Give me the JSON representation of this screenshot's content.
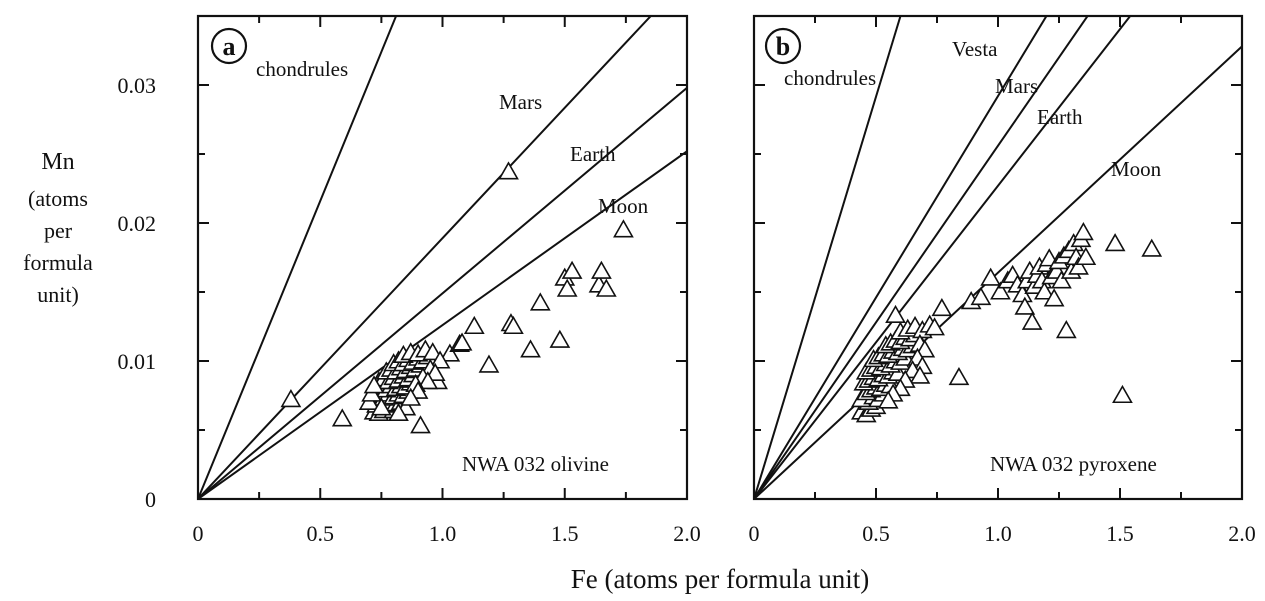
{
  "figure": {
    "xlabel": "Fe (atoms per formula unit)",
    "ylabel_lines": [
      "Mn",
      "(atoms",
      "per",
      "formula",
      "unit)"
    ]
  },
  "chart_data": [
    {
      "type": "scatter",
      "panel": "a",
      "sample_label": "NWA 032 olivine",
      "xlim": [
        0,
        2.0
      ],
      "ylim": [
        0,
        0.035
      ],
      "x_ticks": [
        0,
        0.5,
        1.0,
        1.5,
        2.0
      ],
      "x_tick_labels": [
        "0",
        "0.5",
        "1.0",
        "1.5",
        "2.0"
      ],
      "y_ticks": [
        0,
        0.01,
        0.02,
        0.03
      ],
      "y_tick_labels": [
        "0",
        "0.01",
        "0.02",
        "0.03"
      ],
      "reference_lines": [
        {
          "name": "chondrules",
          "slope": 0.0432
        },
        {
          "name": "Mars",
          "slope": 0.0189
        },
        {
          "name": "Earth",
          "slope": 0.0149
        },
        {
          "name": "Moon",
          "slope": 0.0126
        }
      ],
      "series": [
        {
          "points": [
            [
              0.38,
              0.0072
            ],
            [
              0.59,
              0.0058
            ],
            [
              0.91,
              0.0053
            ],
            [
              0.98,
              0.0085
            ],
            [
              1.03,
              0.0105
            ],
            [
              1.07,
              0.0112
            ],
            [
              1.08,
              0.0113
            ],
            [
              1.13,
              0.0125
            ],
            [
              1.19,
              0.0097
            ],
            [
              1.27,
              0.0237
            ],
            [
              1.28,
              0.0127
            ],
            [
              1.29,
              0.0125
            ],
            [
              1.36,
              0.0108
            ],
            [
              1.4,
              0.0142
            ],
            [
              1.48,
              0.0115
            ],
            [
              1.5,
              0.016
            ],
            [
              1.51,
              0.0152
            ],
            [
              1.53,
              0.0165
            ],
            [
              1.64,
              0.0155
            ],
            [
              1.65,
              0.0165
            ],
            [
              1.67,
              0.0152
            ],
            [
              1.74,
              0.0195
            ],
            [
              0.72,
              0.0063
            ],
            [
              0.74,
              0.0062
            ],
            [
              0.76,
              0.0064
            ],
            [
              0.78,
              0.0066
            ],
            [
              0.8,
              0.0064
            ],
            [
              0.73,
              0.0068
            ],
            [
              0.75,
              0.007
            ],
            [
              0.77,
              0.0068
            ],
            [
              0.79,
              0.007
            ],
            [
              0.81,
              0.0069
            ],
            [
              0.83,
              0.007
            ],
            [
              0.85,
              0.0066
            ],
            [
              0.72,
              0.0073
            ],
            [
              0.74,
              0.0075
            ],
            [
              0.76,
              0.0073
            ],
            [
              0.78,
              0.0076
            ],
            [
              0.8,
              0.0074
            ],
            [
              0.82,
              0.0076
            ],
            [
              0.84,
              0.0075
            ],
            [
              0.86,
              0.0078
            ],
            [
              0.73,
              0.0079
            ],
            [
              0.75,
              0.0081
            ],
            [
              0.77,
              0.0079
            ],
            [
              0.79,
              0.0082
            ],
            [
              0.81,
              0.008
            ],
            [
              0.83,
              0.0082
            ],
            [
              0.85,
              0.0081
            ],
            [
              0.87,
              0.0084
            ],
            [
              0.74,
              0.0085
            ],
            [
              0.76,
              0.0087
            ],
            [
              0.78,
              0.0085
            ],
            [
              0.8,
              0.0088
            ],
            [
              0.82,
              0.0086
            ],
            [
              0.84,
              0.0089
            ],
            [
              0.86,
              0.0087
            ],
            [
              0.88,
              0.009
            ],
            [
              0.77,
              0.0092
            ],
            [
              0.79,
              0.0094
            ],
            [
              0.81,
              0.0092
            ],
            [
              0.83,
              0.0095
            ],
            [
              0.85,
              0.0093
            ],
            [
              0.87,
              0.0096
            ],
            [
              0.89,
              0.0094
            ],
            [
              0.91,
              0.0097
            ],
            [
              0.8,
              0.0098
            ],
            [
              0.82,
              0.01
            ],
            [
              0.84,
              0.0098
            ],
            [
              0.86,
              0.0101
            ],
            [
              0.88,
              0.0099
            ],
            [
              0.9,
              0.0102
            ],
            [
              0.92,
              0.01
            ],
            [
              0.94,
              0.0103
            ],
            [
              0.84,
              0.0104
            ],
            [
              0.87,
              0.0106
            ],
            [
              0.9,
              0.0105
            ],
            [
              0.93,
              0.0108
            ],
            [
              0.96,
              0.0106
            ],
            [
              0.99,
              0.01
            ],
            [
              0.95,
              0.0094
            ],
            [
              0.97,
              0.0091
            ],
            [
              0.92,
              0.0088
            ],
            [
              0.94,
              0.0085
            ],
            [
              0.89,
              0.0083
            ],
            [
              0.9,
              0.0078
            ],
            [
              0.87,
              0.0073
            ],
            [
              0.7,
              0.007
            ],
            [
              0.71,
              0.0076
            ],
            [
              0.72,
              0.0082
            ],
            [
              0.75,
              0.0066
            ],
            [
              0.82,
              0.0062
            ]
          ]
        }
      ]
    },
    {
      "type": "scatter",
      "panel": "b",
      "sample_label": "NWA 032 pyroxene",
      "xlim": [
        0,
        2.0
      ],
      "ylim": [
        0,
        0.035
      ],
      "x_ticks": [
        0,
        0.5,
        1.0,
        1.5,
        2.0
      ],
      "x_tick_labels": [
        "0",
        "0.5",
        "1.0",
        "1.5",
        "2.0"
      ],
      "y_ticks": [
        0,
        0.01,
        0.02,
        0.03
      ],
      "reference_lines": [
        {
          "name": "chondrules",
          "slope": 0.0583
        },
        {
          "name": "Vesta",
          "slope": 0.0292
        },
        {
          "name": "Mars",
          "slope": 0.0256
        },
        {
          "name": "Earth",
          "slope": 0.0227
        },
        {
          "name": "Moon",
          "slope": 0.0164
        }
      ],
      "series": [
        {
          "points": [
            [
              0.58,
              0.0133
            ],
            [
              0.77,
              0.0138
            ],
            [
              0.84,
              0.0088
            ],
            [
              0.89,
              0.0143
            ],
            [
              0.93,
              0.0146
            ],
            [
              0.97,
              0.016
            ],
            [
              1.01,
              0.015
            ],
            [
              1.04,
              0.0158
            ],
            [
              1.06,
              0.0162
            ],
            [
              1.08,
              0.0155
            ],
            [
              1.1,
              0.0148
            ],
            [
              1.11,
              0.0139
            ],
            [
              1.12,
              0.0158
            ],
            [
              1.13,
              0.0165
            ],
            [
              1.14,
              0.0128
            ],
            [
              1.15,
              0.0154
            ],
            [
              1.16,
              0.0162
            ],
            [
              1.17,
              0.0168
            ],
            [
              1.18,
              0.0158
            ],
            [
              1.19,
              0.015
            ],
            [
              1.2,
              0.017
            ],
            [
              1.21,
              0.0174
            ],
            [
              1.22,
              0.0161
            ],
            [
              1.23,
              0.0145
            ],
            [
              1.24,
              0.0165
            ],
            [
              1.25,
              0.0172
            ],
            [
              1.26,
              0.0158
            ],
            [
              1.27,
              0.0176
            ],
            [
              1.28,
              0.0122
            ],
            [
              1.29,
              0.018
            ],
            [
              1.3,
              0.0165
            ],
            [
              1.31,
              0.0185
            ],
            [
              1.32,
              0.0175
            ],
            [
              1.33,
              0.0168
            ],
            [
              1.34,
              0.0188
            ],
            [
              1.35,
              0.0193
            ],
            [
              1.36,
              0.0175
            ],
            [
              1.48,
              0.0185
            ],
            [
              1.51,
              0.0075
            ],
            [
              1.63,
              0.0181
            ],
            [
              0.44,
              0.0063
            ],
            [
              0.46,
              0.0061
            ],
            [
              0.48,
              0.0065
            ],
            [
              0.5,
              0.0067
            ],
            [
              0.47,
              0.007
            ],
            [
              0.44,
              0.0072
            ],
            [
              0.49,
              0.0074
            ],
            [
              0.51,
              0.0072
            ],
            [
              0.53,
              0.0076
            ],
            [
              0.46,
              0.0077
            ],
            [
              0.48,
              0.0079
            ],
            [
              0.5,
              0.0081
            ],
            [
              0.52,
              0.008
            ],
            [
              0.54,
              0.0083
            ],
            [
              0.56,
              0.0082
            ],
            [
              0.45,
              0.0084
            ],
            [
              0.47,
              0.0086
            ],
            [
              0.49,
              0.0088
            ],
            [
              0.51,
              0.0087
            ],
            [
              0.53,
              0.009
            ],
            [
              0.55,
              0.0089
            ],
            [
              0.57,
              0.0092
            ],
            [
              0.59,
              0.0091
            ],
            [
              0.46,
              0.0092
            ],
            [
              0.48,
              0.0094
            ],
            [
              0.5,
              0.0096
            ],
            [
              0.52,
              0.0095
            ],
            [
              0.54,
              0.0098
            ],
            [
              0.56,
              0.0097
            ],
            [
              0.58,
              0.01
            ],
            [
              0.6,
              0.0099
            ],
            [
              0.62,
              0.0102
            ],
            [
              0.49,
              0.0101
            ],
            [
              0.51,
              0.0103
            ],
            [
              0.53,
              0.0105
            ],
            [
              0.55,
              0.0104
            ],
            [
              0.57,
              0.0107
            ],
            [
              0.59,
              0.0106
            ],
            [
              0.61,
              0.0109
            ],
            [
              0.63,
              0.0108
            ],
            [
              0.65,
              0.0111
            ],
            [
              0.54,
              0.0111
            ],
            [
              0.56,
              0.0113
            ],
            [
              0.58,
              0.0115
            ],
            [
              0.6,
              0.0114
            ],
            [
              0.62,
              0.0117
            ],
            [
              0.64,
              0.0116
            ],
            [
              0.66,
              0.0119
            ],
            [
              0.6,
              0.0121
            ],
            [
              0.63,
              0.0123
            ],
            [
              0.66,
              0.0125
            ],
            [
              0.69,
              0.0122
            ],
            [
              0.72,
              0.0126
            ],
            [
              0.74,
              0.0124
            ],
            [
              0.68,
              0.0112
            ],
            [
              0.7,
              0.0108
            ],
            [
              0.67,
              0.0102
            ],
            [
              0.69,
              0.0096
            ],
            [
              0.65,
              0.0093
            ],
            [
              0.68,
              0.0089
            ],
            [
              0.62,
              0.0086
            ],
            [
              0.6,
              0.008
            ],
            [
              0.57,
              0.0076
            ],
            [
              0.55,
              0.0071
            ]
          ]
        }
      ]
    }
  ]
}
